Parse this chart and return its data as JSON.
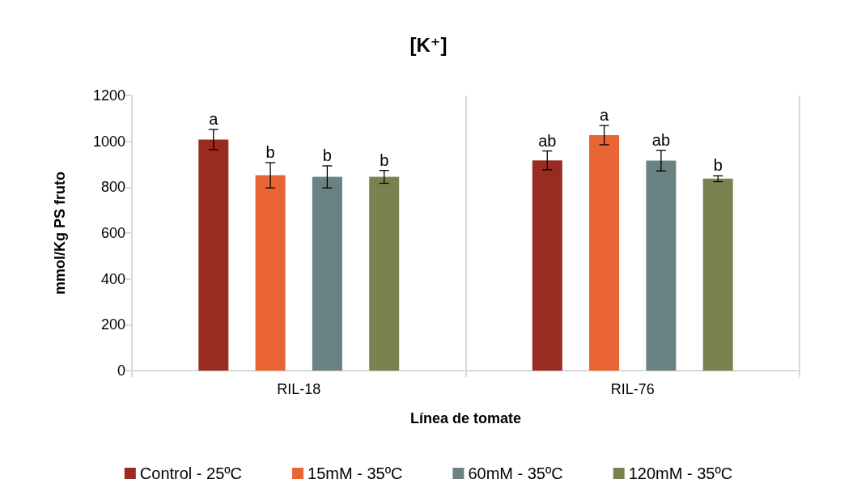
{
  "chart_data": {
    "type": "bar",
    "title": "[K⁺]",
    "xlabel": "Línea de tomate",
    "ylabel": "mmol/Kg PS fruto",
    "categories": [
      "RIL-18",
      "RIL-76"
    ],
    "series": [
      {
        "name": "Control - 25ºC",
        "color": "#992b20",
        "values": [
          1008,
          917
        ],
        "errors": [
          44,
          41
        ],
        "value_labels": [
          "a",
          "ab"
        ]
      },
      {
        "name": "15mM - 35ºC",
        "color": "#e96535",
        "values": [
          852,
          1027
        ],
        "errors": [
          55,
          42
        ],
        "value_labels": [
          "b",
          "a"
        ]
      },
      {
        "name": "60mM - 35ºC",
        "color": "#6b8282",
        "values": [
          845,
          916
        ],
        "errors": [
          48,
          45
        ],
        "value_labels": [
          "b",
          "ab"
        ]
      },
      {
        "name": "120mM - 35ºC",
        "color": "#7c824f",
        "values": [
          845,
          837
        ],
        "errors": [
          28,
          13
        ],
        "value_labels": [
          "b",
          "b"
        ]
      }
    ],
    "ylim": [
      0,
      1200
    ],
    "yticks": [
      0,
      200,
      400,
      600,
      800,
      1000,
      1200
    ],
    "grid": "x",
    "legend": "bottom"
  }
}
